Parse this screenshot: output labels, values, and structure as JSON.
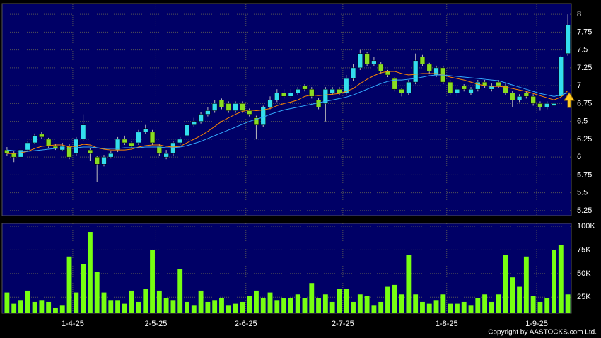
{
  "chart_data": [
    {
      "type": "candlestick",
      "up_color": "#33ddee",
      "down_color": "#88dd22",
      "open": [
        6.1,
        6.05,
        6.0,
        6.1,
        6.2,
        6.32,
        6.25,
        6.15,
        6.1,
        6.15,
        6.05,
        6.25,
        6.1,
        6.0,
        5.9,
        6.0,
        6.1,
        6.25,
        6.2,
        6.2,
        6.35,
        6.35,
        6.15,
        6.0,
        6.05,
        6.2,
        6.3,
        6.45,
        6.5,
        6.6,
        6.65,
        6.8,
        6.75,
        6.65,
        6.75,
        6.65,
        6.55,
        6.45,
        6.7,
        6.8,
        6.9,
        6.85,
        6.9,
        7.0,
        6.95,
        6.8,
        6.75,
        6.9,
        6.95,
        6.9,
        7.1,
        7.25,
        7.45,
        7.3,
        7.3,
        7.2,
        7.1,
        6.95,
        6.9,
        7.05,
        7.4,
        7.3,
        7.15,
        7.25,
        7.05,
        6.9,
        7.0,
        6.9,
        6.95,
        7.05,
        6.95,
        7.05,
        7.0,
        6.9,
        6.8,
        6.9,
        6.85,
        6.75,
        6.7,
        6.72,
        6.85,
        7.45
      ],
      "high": [
        6.14,
        6.08,
        6.12,
        6.22,
        6.33,
        6.35,
        6.27,
        6.18,
        6.2,
        6.18,
        6.28,
        6.6,
        6.12,
        6.02,
        6.03,
        6.08,
        6.28,
        6.3,
        6.22,
        6.38,
        6.45,
        6.38,
        6.18,
        6.1,
        6.22,
        6.28,
        6.48,
        6.55,
        6.63,
        6.7,
        6.8,
        6.82,
        6.78,
        6.78,
        6.78,
        6.68,
        6.58,
        6.72,
        6.85,
        6.95,
        6.95,
        6.95,
        6.98,
        7.02,
        6.98,
        6.83,
        6.98,
        6.98,
        6.98,
        7.15,
        7.3,
        7.5,
        7.47,
        7.4,
        7.33,
        7.22,
        7.12,
        6.97,
        7.08,
        7.45,
        7.43,
        7.32,
        7.28,
        7.28,
        7.08,
        6.98,
        7.02,
        6.98,
        7.08,
        7.08,
        7.03,
        7.08,
        7.03,
        6.93,
        6.88,
        6.92,
        6.88,
        6.78,
        6.78,
        6.78,
        7.42,
        8.0
      ],
      "low": [
        6.02,
        5.93,
        5.98,
        6.08,
        6.18,
        6.25,
        6.12,
        6.1,
        6.08,
        5.97,
        6.02,
        6.22,
        5.95,
        5.65,
        5.87,
        5.98,
        6.07,
        6.17,
        6.12,
        6.17,
        6.32,
        6.17,
        6.02,
        5.97,
        6.02,
        6.17,
        6.27,
        6.42,
        6.47,
        6.57,
        6.62,
        6.67,
        6.62,
        6.62,
        6.62,
        6.57,
        6.25,
        6.42,
        6.67,
        6.77,
        6.82,
        6.82,
        6.87,
        6.92,
        6.82,
        6.67,
        6.5,
        6.87,
        6.87,
        6.87,
        7.07,
        7.22,
        7.27,
        7.27,
        7.17,
        7.12,
        6.92,
        6.85,
        6.87,
        7.02,
        7.27,
        7.17,
        7.12,
        7.02,
        6.87,
        6.85,
        6.92,
        6.87,
        6.92,
        6.97,
        6.92,
        6.97,
        6.87,
        6.7,
        6.77,
        6.82,
        6.72,
        6.65,
        6.67,
        6.69,
        6.82,
        7.42
      ],
      "close": [
        6.05,
        6.0,
        6.1,
        6.2,
        6.3,
        6.28,
        6.15,
        6.12,
        6.15,
        6.0,
        6.25,
        6.45,
        6.05,
        5.9,
        6.0,
        6.05,
        6.25,
        6.2,
        6.15,
        6.35,
        6.4,
        6.2,
        6.05,
        6.05,
        6.2,
        6.25,
        6.45,
        6.5,
        6.6,
        6.65,
        6.75,
        6.7,
        6.65,
        6.75,
        6.65,
        6.6,
        6.45,
        6.7,
        6.8,
        6.9,
        6.85,
        6.9,
        6.95,
        6.95,
        6.85,
        6.7,
        6.95,
        6.95,
        6.9,
        7.1,
        7.25,
        7.45,
        7.3,
        7.35,
        7.2,
        7.15,
        6.95,
        6.9,
        7.05,
        7.35,
        7.3,
        7.2,
        7.25,
        7.05,
        6.9,
        6.95,
        6.95,
        6.95,
        7.05,
        7.0,
        7.0,
        7.0,
        6.9,
        6.8,
        6.85,
        6.85,
        6.75,
        6.7,
        6.75,
        6.75,
        7.4,
        7.85
      ],
      "series": [
        {
          "color": "#ff8800",
          "values": [
            6.05,
            6.05,
            6.06,
            6.08,
            6.12,
            6.15,
            6.16,
            6.17,
            6.17,
            6.14,
            6.15,
            6.18,
            6.17,
            6.13,
            6.11,
            6.1,
            6.1,
            6.1,
            6.11,
            6.14,
            6.16,
            6.17,
            6.17,
            6.15,
            6.14,
            6.15,
            6.2,
            6.25,
            6.3,
            6.36,
            6.43,
            6.5,
            6.55,
            6.6,
            6.64,
            6.66,
            6.65,
            6.66,
            6.68,
            6.72,
            6.75,
            6.77,
            6.8,
            6.85,
            6.87,
            6.86,
            6.87,
            6.88,
            6.89,
            6.92,
            6.96,
            7.03,
            7.09,
            7.14,
            7.18,
            7.2,
            7.2,
            7.17,
            7.15,
            7.16,
            7.17,
            7.17,
            7.17,
            7.15,
            7.12,
            7.1,
            7.08,
            7.05,
            7.02,
            7.0,
            6.99,
            6.99,
            6.98,
            6.96,
            6.94,
            6.92,
            6.89,
            6.86,
            6.83,
            6.8,
            6.84,
            6.93
          ]
        },
        {
          "color": "#33aaff",
          "values": [
            6.1,
            6.09,
            6.08,
            6.08,
            6.09,
            6.1,
            6.11,
            6.12,
            6.13,
            6.12,
            6.13,
            6.14,
            6.14,
            6.13,
            6.12,
            6.12,
            6.12,
            6.13,
            6.13,
            6.13,
            6.14,
            6.14,
            6.14,
            6.13,
            6.13,
            6.14,
            6.16,
            6.19,
            6.22,
            6.26,
            6.3,
            6.34,
            6.38,
            6.42,
            6.46,
            6.5,
            6.53,
            6.56,
            6.6,
            6.63,
            6.66,
            6.68,
            6.7,
            6.72,
            6.74,
            6.76,
            6.78,
            6.8,
            6.82,
            6.84,
            6.87,
            6.91,
            6.95,
            6.99,
            7.03,
            7.06,
            7.08,
            7.08,
            7.09,
            7.1,
            7.12,
            7.14,
            7.15,
            7.15,
            7.14,
            7.13,
            7.12,
            7.11,
            7.1,
            7.09,
            7.08,
            7.07,
            7.04,
            7.01,
            6.98,
            6.95,
            6.92,
            6.89,
            6.87,
            6.85,
            6.87,
            6.9
          ]
        }
      ],
      "ylim": [
        5.18,
        8.14
      ],
      "yticks": [
        5.25,
        5.5,
        5.75,
        6,
        6.25,
        6.5,
        6.75,
        7,
        7.25,
        7.5,
        7.75,
        8
      ],
      "grid": true
    },
    {
      "type": "bar",
      "color": "#77ff11",
      "categories": [
        null,
        null,
        null,
        null,
        null,
        null,
        null,
        null,
        null,
        null,
        "1-4-25",
        null,
        null,
        null,
        null,
        null,
        null,
        null,
        null,
        null,
        null,
        null,
        "2-5-25",
        null,
        null,
        null,
        null,
        null,
        null,
        null,
        null,
        null,
        null,
        null,
        null,
        "2-6-25",
        null,
        null,
        null,
        null,
        null,
        null,
        null,
        null,
        null,
        null,
        null,
        null,
        null,
        "2-7-25",
        null,
        null,
        null,
        null,
        null,
        null,
        null,
        null,
        null,
        null,
        null,
        null,
        null,
        null,
        "1-8-25",
        null,
        null,
        null,
        null,
        null,
        null,
        null,
        null,
        null,
        null,
        null,
        null,
        "1-9-25",
        null,
        null,
        null,
        null
      ],
      "values": [
        30000,
        18000,
        22000,
        32000,
        20000,
        22000,
        20000,
        14000,
        16000,
        68000,
        30000,
        60000,
        94000,
        52000,
        30000,
        22000,
        22000,
        18000,
        32000,
        20000,
        34000,
        75000,
        32000,
        24000,
        22000,
        55000,
        20000,
        16000,
        32000,
        20000,
        22000,
        24000,
        16000,
        18000,
        20000,
        26000,
        32000,
        24000,
        30000,
        22000,
        24000,
        24000,
        28000,
        24000,
        40000,
        24000,
        28000,
        20000,
        34000,
        34000,
        20000,
        28000,
        26000,
        16000,
        20000,
        36000,
        38000,
        28000,
        70000,
        28000,
        20000,
        18000,
        22000,
        28000,
        18000,
        18000,
        20000,
        16000,
        24000,
        28000,
        20000,
        28000,
        70000,
        46000,
        36000,
        68000,
        26000,
        20000,
        24000,
        75000,
        80000,
        28000
      ],
      "ylim": [
        8000,
        103000
      ],
      "yticks": [
        {
          "value": 25000,
          "label": "25K"
        },
        {
          "value": 50000,
          "label": "50K"
        },
        {
          "value": 75000,
          "label": "75K"
        },
        {
          "value": 100000,
          "label": "100K"
        }
      ],
      "grid": true
    }
  ],
  "footer": "Copyright by AASTOCKS.com Ltd."
}
